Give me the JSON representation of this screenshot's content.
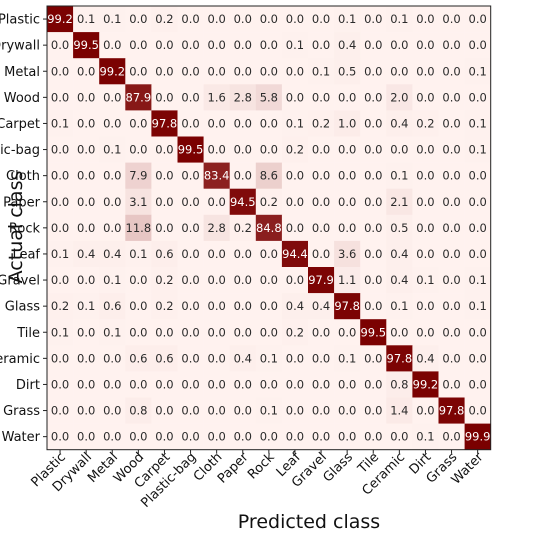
{
  "chart_data": {
    "type": "heatmap",
    "title": "",
    "xlabel": "Predicted class",
    "ylabel": "Actual class",
    "colormap": "white-to-dark-red",
    "colors": {
      "high": "#7a0000",
      "low": "#fff2ef",
      "text_dark": "#2b2b2b",
      "text_light": "#ffffff"
    },
    "row_labels": [
      "Plastic",
      "Drywall",
      "Metal",
      "Wood",
      "Carpet",
      "Plastic-bag",
      "Cloth",
      "Paper",
      "Rock",
      "Leaf",
      "Gravel",
      "Glass",
      "Tile",
      "Ceramic",
      "Dirt",
      "Grass",
      "Water"
    ],
    "col_labels": [
      "Plastic",
      "Drywall",
      "Metal",
      "Wood",
      "Carpet",
      "Plastic-bag",
      "Cloth",
      "Paper",
      "Rock",
      "Leaf",
      "Gravel",
      "Glass",
      "Tile",
      "Ceramic",
      "Dirt",
      "Grass",
      "Water"
    ],
    "values": [
      [
        "99.2",
        "0.1",
        "0.1",
        "0.0",
        "0.2",
        "0.0",
        "0.0",
        "0.0",
        "0.0",
        "0.0",
        "0.0",
        "0.1",
        "0.0",
        "0.1",
        "0.0",
        "0.0",
        "0.0"
      ],
      [
        "0.0",
        "99.5",
        "0.0",
        "0.0",
        "0.0",
        "0.0",
        "0.0",
        "0.0",
        "0.0",
        "0.1",
        "0.0",
        "0.4",
        "0.0",
        "0.0",
        "0.0",
        "0.0",
        "0.0"
      ],
      [
        "0.0",
        "0.0",
        "99.2",
        "0.0",
        "0.0",
        "0.0",
        "0.0",
        "0.0",
        "0.0",
        "0.0",
        "0.1",
        "0.5",
        "0.0",
        "0.0",
        "0.0",
        "0.0",
        "0.1"
      ],
      [
        "0.0",
        "0.0",
        "0.0",
        "87.9",
        "0.0",
        "0.0",
        "1.6",
        "2.8",
        "5.8",
        "0.0",
        "0.0",
        "0.0",
        "0.0",
        "2.0",
        "0.0",
        "0.0",
        "0.0"
      ],
      [
        "0.1",
        "0.0",
        "0.0",
        "0.0",
        "97.8",
        "0.0",
        "0.0",
        "0.0",
        "0.0",
        "0.1",
        "0.2",
        "1.0",
        "0.0",
        "0.4",
        "0.2",
        "0.0",
        "0.1"
      ],
      [
        "0.0",
        "0.0",
        "0.1",
        "0.0",
        "0.0",
        "99.5",
        "0.0",
        "0.0",
        "0.0",
        "0.2",
        "0.0",
        "0.0",
        "0.0",
        "0.0",
        "0.0",
        "0.0",
        "0.1"
      ],
      [
        "0.0",
        "0.0",
        "0.0",
        "7.9",
        "0.0",
        "0.0",
        "83.4",
        "0.0",
        "8.6",
        "0.0",
        "0.0",
        "0.0",
        "0.0",
        "0.1",
        "0.0",
        "0.0",
        "0.0"
      ],
      [
        "0.0",
        "0.0",
        "0.0",
        "3.1",
        "0.0",
        "0.0",
        "0.0",
        "94.5",
        "0.2",
        "0.0",
        "0.0",
        "0.0",
        "0.0",
        "2.1",
        "0.0",
        "0.0",
        "0.0"
      ],
      [
        "0.0",
        "0.0",
        "0.0",
        "11.8",
        "0.0",
        "0.0",
        "2.8",
        "0.2",
        "84.8",
        "0.0",
        "0.0",
        "0.0",
        "0.0",
        "0.5",
        "0.0",
        "0.0",
        "0.0"
      ],
      [
        "0.1",
        "0.4",
        "0.4",
        "0.1",
        "0.6",
        "0.0",
        "0.0",
        "0.0",
        "0.0",
        "94.4",
        "0.0",
        "3.6",
        "0.0",
        "0.4",
        "0.0",
        "0.0",
        "0.0"
      ],
      [
        "0.0",
        "0.0",
        "0.1",
        "0.0",
        "0.2",
        "0.0",
        "0.0",
        "0.0",
        "0.0",
        "0.0",
        "97.9",
        "1.1",
        "0.0",
        "0.4",
        "0.1",
        "0.0",
        "0.1"
      ],
      [
        "0.2",
        "0.1",
        "0.6",
        "0.0",
        "0.2",
        "0.0",
        "0.0",
        "0.0",
        "0.0",
        "0.4",
        "0.4",
        "97.8",
        "0.0",
        "0.1",
        "0.0",
        "0.0",
        "0.1"
      ],
      [
        "0.1",
        "0.0",
        "0.1",
        "0.0",
        "0.0",
        "0.0",
        "0.0",
        "0.0",
        "0.0",
        "0.2",
        "0.0",
        "0.0",
        "99.5",
        "0.0",
        "0.0",
        "0.0",
        "0.0"
      ],
      [
        "0.0",
        "0.0",
        "0.0",
        "0.6",
        "0.6",
        "0.0",
        "0.0",
        "0.4",
        "0.1",
        "0.0",
        "0.0",
        "0.1",
        "0.0",
        "97.8",
        "0.4",
        "0.0",
        "0.0"
      ],
      [
        "0.0",
        "0.0",
        "0.0",
        "0.0",
        "0.0",
        "0.0",
        "0.0",
        "0.0",
        "0.0",
        "0.0",
        "0.0",
        "0.0",
        "0.0",
        "0.8",
        "99.2",
        "0.0",
        "0.0"
      ],
      [
        "0.0",
        "0.0",
        "0.0",
        "0.8",
        "0.0",
        "0.0",
        "0.0",
        "0.0",
        "0.1",
        "0.0",
        "0.0",
        "0.0",
        "0.0",
        "1.4",
        "0.0",
        "97.8",
        "0.0"
      ],
      [
        "0.0",
        "0.0",
        "0.0",
        "0.0",
        "0.0",
        "0.0",
        "0.0",
        "0.0",
        "0.0",
        "0.0",
        "0.0",
        "0.0",
        "0.0",
        "0.0",
        "0.1",
        "0.0",
        "99.9"
      ]
    ]
  }
}
